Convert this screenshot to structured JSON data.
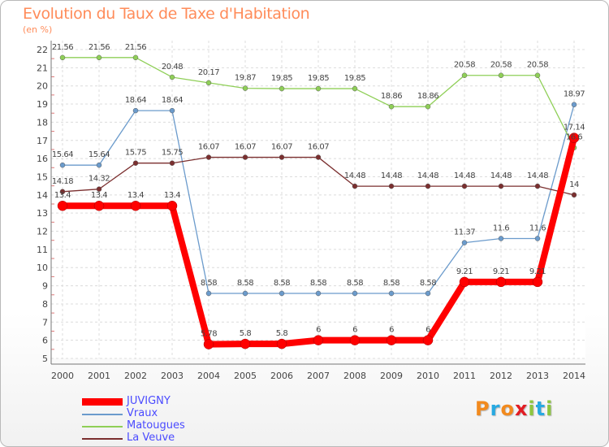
{
  "title": "Evolution du Taux de Taxe d'Habitation",
  "unit": "(en %)",
  "logo_text": "Proxiti",
  "logo_colors": [
    "#f28a1e",
    "#27a9e1",
    "#f28a1e",
    "#e21d24",
    "#8dc63f",
    "#27a9e1",
    "#8dc63f"
  ],
  "chart_data": {
    "type": "line",
    "x": [
      2000,
      2001,
      2002,
      2003,
      2004,
      2005,
      2006,
      2007,
      2008,
      2009,
      2010,
      2011,
      2012,
      2013,
      2014
    ],
    "ylim": [
      5,
      22
    ],
    "yticks": [
      5,
      6,
      7,
      8,
      9,
      10,
      11,
      12,
      13,
      14,
      15,
      16,
      17,
      18,
      19,
      20,
      21,
      22
    ],
    "grid": true,
    "legend_position": "bottom-left",
    "series": [
      {
        "name": "JUVIGNY",
        "color": "#ff0000",
        "width": 8,
        "values": [
          13.4,
          13.4,
          13.4,
          13.4,
          5.78,
          5.8,
          5.8,
          6,
          6,
          6,
          6,
          9.21,
          9.21,
          9.21,
          17.14
        ],
        "labels": [
          "13.4",
          "13.4",
          "13.4",
          "13.4",
          "5.78",
          "5.8",
          "5.8",
          "6",
          "6",
          "6",
          "6",
          "9.21",
          "9.21",
          "9.21",
          "17.14"
        ]
      },
      {
        "name": "Vraux",
        "color": "#6b9bcc",
        "width": 1,
        "values": [
          15.64,
          15.64,
          18.64,
          18.64,
          8.58,
          8.58,
          8.58,
          8.58,
          8.58,
          8.58,
          8.58,
          11.37,
          11.6,
          11.6,
          18.97
        ],
        "labels": [
          "15.64",
          "15.64",
          "18.64",
          "18.64",
          "8.58",
          "8.58",
          "8.58",
          "8.58",
          "8.58",
          "8.58",
          "8.58",
          "11.37",
          "11.6",
          "11.6",
          "18.97"
        ]
      },
      {
        "name": "Matougues",
        "color": "#8fcf57",
        "width": 1,
        "values": [
          21.56,
          21.56,
          21.56,
          20.48,
          20.17,
          19.87,
          19.85,
          19.85,
          19.85,
          18.86,
          18.86,
          20.58,
          20.58,
          20.58,
          16.6
        ],
        "labels": [
          "21.56",
          "21.56",
          "21.56",
          "20.48",
          "20.17",
          "19.87",
          "19.85",
          "19.85",
          "19.85",
          "18.86",
          "18.86",
          "20.58",
          "20.58",
          "20.58",
          "16.6"
        ]
      },
      {
        "name": "La Veuve",
        "color": "#7b2f2f",
        "width": 1,
        "values": [
          14.18,
          14.32,
          15.75,
          15.75,
          16.07,
          16.07,
          16.07,
          16.07,
          14.48,
          14.48,
          14.48,
          14.48,
          14.48,
          14.48,
          14
        ],
        "labels": [
          "14.18",
          "14.32",
          "15.75",
          "15.75",
          "16.07",
          "16.07",
          "16.07",
          "16.07",
          "14.48",
          "14.48",
          "14.48",
          "14.48",
          "14.48",
          "14.48",
          "14"
        ]
      }
    ]
  }
}
